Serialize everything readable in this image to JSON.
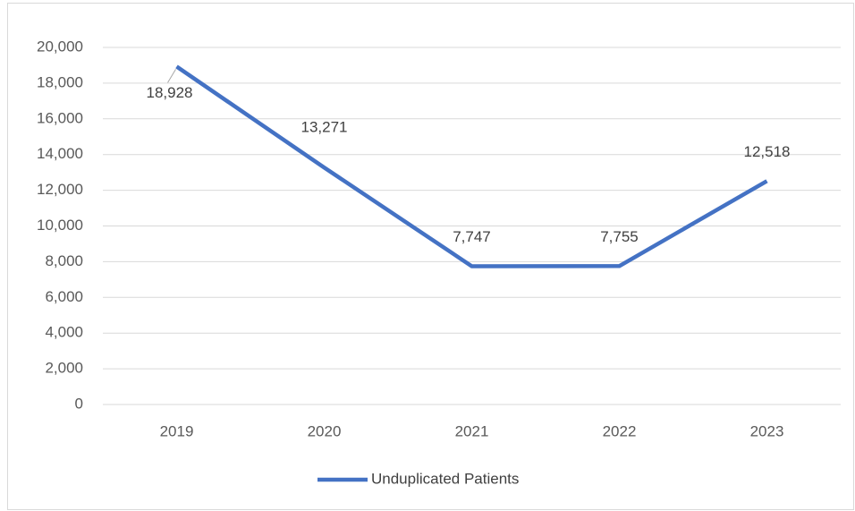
{
  "chart_data": {
    "type": "line",
    "categories": [
      "2019",
      "2020",
      "2021",
      "2022",
      "2023"
    ],
    "series": [
      {
        "name": "Unduplicated Patients",
        "color": "#4472c4",
        "values": [
          18928,
          13271,
          7747,
          7755,
          12518
        ],
        "value_labels": [
          "18,928",
          "13,271",
          "7,747",
          "7,755",
          "12,518"
        ]
      }
    ],
    "ylim": [
      0,
      20000
    ],
    "yticks": [
      0,
      {
        "value": 2000,
        "label": "2,000"
      },
      {
        "value": 4000,
        "label": "4,000"
      },
      {
        "value": 6000,
        "label": "6,000"
      },
      {
        "value": 8000,
        "label": "8,000"
      },
      {
        "value": 10000,
        "label": "10,000"
      },
      {
        "value": 12000,
        "label": "12,000"
      },
      {
        "value": 14000,
        "label": "14,000"
      },
      {
        "value": 16000,
        "label": "16,000"
      },
      {
        "value": 18000,
        "label": "18,000"
      },
      {
        "value": 20000,
        "label": "20,000"
      }
    ],
    "grid": true,
    "legend": "bottom"
  }
}
